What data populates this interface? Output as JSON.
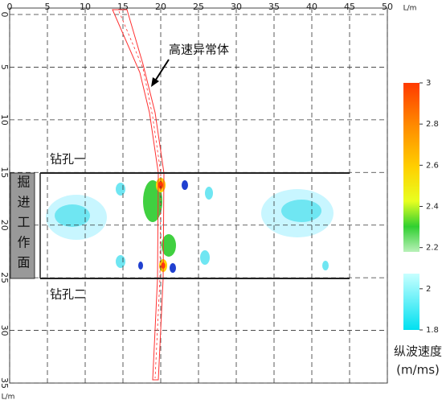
{
  "chart_data": {
    "type": "contour",
    "x_label": "L/m",
    "y_label": "L/m",
    "xlim": [
      0,
      50
    ],
    "xticks": [
      0,
      5,
      10,
      15,
      20,
      25,
      30,
      35,
      40,
      45,
      50
    ],
    "ylim": [
      0,
      35
    ],
    "yticks": [
      0,
      5,
      10,
      15,
      20,
      25,
      30,
      35
    ],
    "y_inverted": true,
    "grid": true,
    "colorbar": {
      "title": "纵波速度",
      "unit": "(m/ms)",
      "lim": [
        1.8,
        3
      ],
      "ticks": [
        1.8,
        2,
        2.2,
        2.4,
        2.6,
        2.8,
        3
      ]
    },
    "annotations": {
      "anomaly": "高速异常体",
      "borehole_1": "钻孔一",
      "borehole_2": "钻孔二",
      "face": "掘进工作面"
    }
  }
}
